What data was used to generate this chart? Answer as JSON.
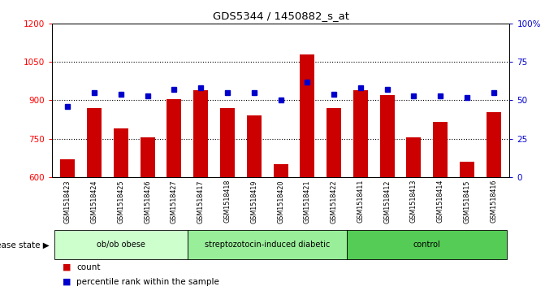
{
  "title": "GDS5344 / 1450882_s_at",
  "samples": [
    "GSM1518423",
    "GSM1518424",
    "GSM1518425",
    "GSM1518426",
    "GSM1518427",
    "GSM1518417",
    "GSM1518418",
    "GSM1518419",
    "GSM1518420",
    "GSM1518421",
    "GSM1518422",
    "GSM1518411",
    "GSM1518412",
    "GSM1518413",
    "GSM1518414",
    "GSM1518415",
    "GSM1518416"
  ],
  "counts": [
    670,
    870,
    790,
    755,
    905,
    940,
    870,
    840,
    650,
    1080,
    870,
    940,
    920,
    755,
    815,
    660,
    855
  ],
  "percentiles": [
    46,
    55,
    54,
    53,
    57,
    58,
    55,
    55,
    50,
    62,
    54,
    58,
    57,
    53,
    53,
    52,
    55
  ],
  "groups": [
    {
      "label": "ob/ob obese",
      "start": 0,
      "end": 5,
      "color": "#ccffcc"
    },
    {
      "label": "streptozotocin-induced diabetic",
      "start": 5,
      "end": 11,
      "color": "#99ee99"
    },
    {
      "label": "control",
      "start": 11,
      "end": 17,
      "color": "#55cc55"
    }
  ],
  "ylim_left": [
    600,
    1200
  ],
  "yticks_left": [
    600,
    750,
    900,
    1050,
    1200
  ],
  "ylim_right": [
    0,
    100
  ],
  "yticks_right": [
    0,
    25,
    50,
    75,
    100
  ],
  "ytick_right_labels": [
    "0",
    "25",
    "50",
    "75",
    "100%"
  ],
  "bar_color": "#cc0000",
  "dot_color": "#0000cc",
  "plot_bg": "#ffffff",
  "tick_area_bg": "#d8d8d8",
  "disease_state_label": "disease state",
  "legend_count_label": "count",
  "legend_pct_label": "percentile rank within the sample",
  "grid_yticks": [
    750,
    900,
    1050
  ]
}
